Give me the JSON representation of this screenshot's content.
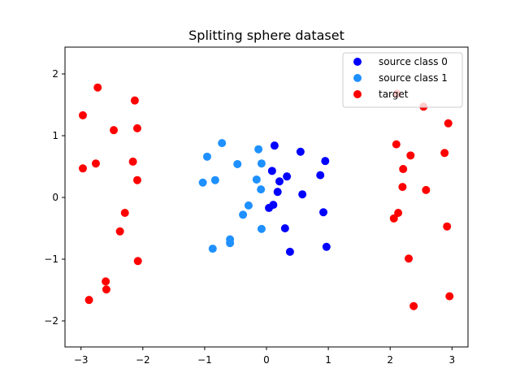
{
  "chart_data": {
    "type": "scatter",
    "title": "Splitting sphere dataset",
    "xlabel": "",
    "ylabel": "",
    "xlim": [
      -3.3,
      3.2
    ],
    "ylim": [
      -2.43,
      2.43
    ],
    "xticks": [
      -3,
      -2,
      -1,
      0,
      1,
      2,
      3
    ],
    "yticks": [
      -2,
      -1,
      0,
      1,
      2
    ],
    "xtick_labels": [
      "−3",
      "−2",
      "−1",
      "0",
      "1",
      "2",
      "3"
    ],
    "ytick_labels": [
      "−2",
      "−1",
      "0",
      "1",
      "2"
    ],
    "grid": false,
    "legend_position": "upper right",
    "series": [
      {
        "name": "source class 0",
        "color": "#0000ff",
        "points": [
          [
            0.13,
            0.84
          ],
          [
            0.55,
            0.74
          ],
          [
            0.95,
            0.59
          ],
          [
            0.09,
            0.43
          ],
          [
            0.33,
            0.34
          ],
          [
            0.87,
            0.36
          ],
          [
            0.18,
            0.09
          ],
          [
            0.21,
            0.26
          ],
          [
            0.58,
            0.05
          ],
          [
            0.04,
            -0.17
          ],
          [
            0.11,
            -0.12
          ],
          [
            0.92,
            -0.24
          ],
          [
            0.3,
            -0.5
          ],
          [
            0.97,
            -0.8
          ],
          [
            0.38,
            -0.88
          ]
        ]
      },
      {
        "name": "source class 1",
        "color": "#1e90ff",
        "points": [
          [
            -0.72,
            0.88
          ],
          [
            -0.96,
            0.66
          ],
          [
            -0.47,
            0.54
          ],
          [
            -0.13,
            0.78
          ],
          [
            -0.08,
            0.55
          ],
          [
            -0.16,
            0.29
          ],
          [
            -1.03,
            0.24
          ],
          [
            -0.83,
            0.28
          ],
          [
            -0.09,
            0.13
          ],
          [
            -0.29,
            -0.13
          ],
          [
            -0.38,
            -0.28
          ],
          [
            -0.08,
            -0.51
          ],
          [
            -0.59,
            -0.68
          ],
          [
            -0.59,
            -0.74
          ],
          [
            -0.87,
            -0.83
          ]
        ]
      },
      {
        "name": "target",
        "color": "#ff0000",
        "points": [
          [
            -2.73,
            1.78
          ],
          [
            -2.13,
            1.57
          ],
          [
            -2.97,
            1.33
          ],
          [
            -2.47,
            1.09
          ],
          [
            -2.09,
            1.12
          ],
          [
            -2.76,
            0.55
          ],
          [
            -2.97,
            0.47
          ],
          [
            -2.16,
            0.58
          ],
          [
            -2.09,
            0.28
          ],
          [
            -2.29,
            -0.25
          ],
          [
            -2.37,
            -0.55
          ],
          [
            -2.08,
            -1.03
          ],
          [
            -2.6,
            -1.36
          ],
          [
            -2.59,
            -1.49
          ],
          [
            -2.87,
            -1.66
          ],
          [
            2.1,
            0.86
          ],
          [
            2.33,
            0.68
          ],
          [
            2.21,
            0.46
          ],
          [
            2.2,
            0.17
          ],
          [
            2.58,
            0.12
          ],
          [
            2.06,
            -0.34
          ],
          [
            2.13,
            -0.25
          ],
          [
            2.92,
            -0.47
          ],
          [
            2.3,
            -0.99
          ],
          [
            2.96,
            -1.6
          ],
          [
            2.38,
            -1.76
          ],
          [
            2.11,
            1.68
          ],
          [
            2.54,
            1.47
          ],
          [
            2.94,
            1.2
          ],
          [
            2.88,
            0.72
          ]
        ]
      }
    ]
  },
  "legend": {
    "items": [
      {
        "label": "source class 0",
        "color": "#0000ff"
      },
      {
        "label": "source class 1",
        "color": "#1e90ff"
      },
      {
        "label": "target",
        "color": "#ff0000"
      }
    ]
  }
}
